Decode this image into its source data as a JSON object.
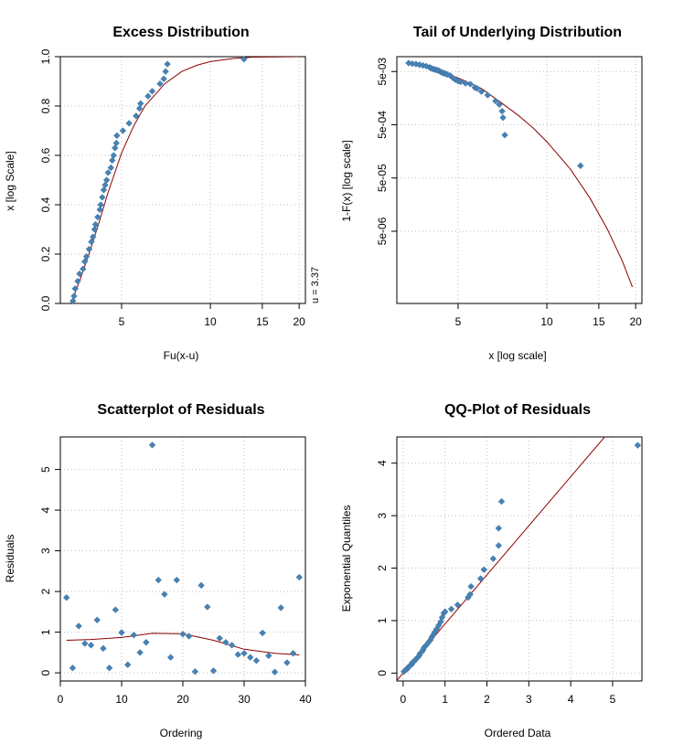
{
  "colors": {
    "points": "#4682B4",
    "curve": "#8B0000",
    "grid": "#BEBEBE"
  },
  "chart_data": [
    {
      "id": "excess",
      "type": "scatter",
      "title": "Excess Distribution",
      "xlabel": "Fu(x-u)",
      "ylabel": "x [log Scale]",
      "xscale": "log",
      "xlim": [
        3.1,
        21
      ],
      "ylim": [
        0,
        1
      ],
      "xticks": [
        5,
        10,
        15,
        20
      ],
      "yticks": [
        0.0,
        0.2,
        0.4,
        0.6,
        0.8,
        1.0
      ],
      "ytick_labels": [
        "0.0",
        "0.2",
        "0.4",
        "0.6",
        "0.8",
        "1.0"
      ],
      "annotation": "u = 3.37",
      "points": [
        [
          3.42,
          0.01
        ],
        [
          3.45,
          0.03
        ],
        [
          3.48,
          0.06
        ],
        [
          3.55,
          0.09
        ],
        [
          3.6,
          0.12
        ],
        [
          3.7,
          0.14
        ],
        [
          3.75,
          0.17
        ],
        [
          3.8,
          0.19
        ],
        [
          3.88,
          0.22
        ],
        [
          3.95,
          0.25
        ],
        [
          4.0,
          0.27
        ],
        [
          4.05,
          0.3
        ],
        [
          4.08,
          0.32
        ],
        [
          4.15,
          0.35
        ],
        [
          4.22,
          0.38
        ],
        [
          4.25,
          0.4
        ],
        [
          4.3,
          0.43
        ],
        [
          4.35,
          0.46
        ],
        [
          4.4,
          0.48
        ],
        [
          4.45,
          0.5
        ],
        [
          4.5,
          0.53
        ],
        [
          4.6,
          0.55
        ],
        [
          4.65,
          0.58
        ],
        [
          4.7,
          0.6
        ],
        [
          4.75,
          0.63
        ],
        [
          4.8,
          0.65
        ],
        [
          4.82,
          0.68
        ],
        [
          5.05,
          0.7
        ],
        [
          5.3,
          0.73
        ],
        [
          5.6,
          0.76
        ],
        [
          5.75,
          0.79
        ],
        [
          5.8,
          0.81
        ],
        [
          6.15,
          0.84
        ],
        [
          6.35,
          0.86
        ],
        [
          6.75,
          0.89
        ],
        [
          6.95,
          0.91
        ],
        [
          7.05,
          0.94
        ],
        [
          7.15,
          0.97
        ],
        [
          13.0,
          0.99
        ]
      ],
      "curve": [
        [
          3.37,
          0.0
        ],
        [
          3.6,
          0.09
        ],
        [
          3.9,
          0.21
        ],
        [
          4.2,
          0.33
        ],
        [
          4.5,
          0.45
        ],
        [
          5.0,
          0.61
        ],
        [
          5.5,
          0.72
        ],
        [
          6.0,
          0.8
        ],
        [
          7.0,
          0.89
        ],
        [
          8.0,
          0.94
        ],
        [
          9.0,
          0.965
        ],
        [
          10.0,
          0.98
        ],
        [
          12.0,
          0.993
        ],
        [
          14.0,
          0.998
        ],
        [
          20.0,
          1.0
        ]
      ]
    },
    {
      "id": "tail",
      "type": "scatter",
      "title": "Tail of Underlying Distribution",
      "xlabel": "x [log scale]",
      "ylabel": "1-F(x) [log scale]",
      "xscale": "log",
      "yscale": "log",
      "xlim": [
        3.1,
        21
      ],
      "ylim": [
        2.2e-07,
        0.0095
      ],
      "xticks": [
        5,
        10,
        15,
        20
      ],
      "yticks": [
        0.005,
        0.0005,
        5e-05,
        5e-06
      ],
      "ytick_labels": [
        "5e-03",
        "5e-04",
        "5e-05",
        "5e-06"
      ],
      "points": [
        [
          3.4,
          0.0072
        ],
        [
          3.5,
          0.007
        ],
        [
          3.6,
          0.0069
        ],
        [
          3.7,
          0.0067
        ],
        [
          3.8,
          0.0065
        ],
        [
          3.9,
          0.0063
        ],
        [
          4.0,
          0.006
        ],
        [
          4.05,
          0.0058
        ],
        [
          4.1,
          0.0056
        ],
        [
          4.15,
          0.0055
        ],
        [
          4.2,
          0.0054
        ],
        [
          4.25,
          0.0053
        ],
        [
          4.3,
          0.0052
        ],
        [
          4.35,
          0.005
        ],
        [
          4.4,
          0.0048
        ],
        [
          4.45,
          0.0047
        ],
        [
          4.5,
          0.0046
        ],
        [
          4.55,
          0.0045
        ],
        [
          4.6,
          0.0044
        ],
        [
          4.7,
          0.0042
        ],
        [
          4.8,
          0.0038
        ],
        [
          4.9,
          0.0035
        ],
        [
          5.0,
          0.0033
        ],
        [
          5.1,
          0.0032
        ],
        [
          5.3,
          0.003
        ],
        [
          5.5,
          0.0029
        ],
        [
          5.7,
          0.0025
        ],
        [
          5.8,
          0.0024
        ],
        [
          6.0,
          0.0021
        ],
        [
          6.3,
          0.0018
        ],
        [
          6.7,
          0.0014
        ],
        [
          6.9,
          0.0012
        ],
        [
          7.05,
          0.0009
        ],
        [
          7.1,
          0.00068
        ],
        [
          7.2,
          0.00032
        ],
        [
          13.0,
          8.5e-05
        ]
      ],
      "curve": [
        [
          3.37,
          0.0074
        ],
        [
          4.0,
          0.0059
        ],
        [
          5.0,
          0.0038
        ],
        [
          6.0,
          0.0024
        ],
        [
          7.0,
          0.0013
        ],
        [
          8.0,
          0.00075
        ],
        [
          9.0,
          0.00043
        ],
        [
          10.0,
          0.00024
        ],
        [
          12.0,
          7.4e-05
        ],
        [
          14.0,
          2.1e-05
        ],
        [
          16.0,
          5.6e-06
        ],
        [
          18.0,
          1.4e-06
        ],
        [
          19.5,
          4.5e-07
        ]
      ]
    },
    {
      "id": "resid",
      "type": "scatter",
      "title": "Scatterplot of Residuals",
      "xlabel": "Ordering",
      "ylabel": "Residuals",
      "xlim": [
        0,
        40
      ],
      "ylim": [
        -0.2,
        5.8
      ],
      "xticks": [
        0,
        10,
        20,
        30,
        40
      ],
      "yticks": [
        0,
        1,
        2,
        3,
        4,
        5
      ],
      "ytick_labels": [
        "0",
        "1",
        "2",
        "3",
        "4",
        "5"
      ],
      "points": [
        [
          1,
          1.85
        ],
        [
          2,
          0.12
        ],
        [
          3,
          1.15
        ],
        [
          4,
          0.72
        ],
        [
          5,
          0.68
        ],
        [
          6,
          1.3
        ],
        [
          7,
          0.6
        ],
        [
          8,
          0.12
        ],
        [
          9,
          1.55
        ],
        [
          10,
          0.99
        ],
        [
          11,
          0.2
        ],
        [
          12,
          0.93
        ],
        [
          13,
          0.5
        ],
        [
          14,
          0.75
        ],
        [
          15,
          5.6
        ],
        [
          16,
          2.28
        ],
        [
          17,
          1.93
        ],
        [
          18,
          0.38
        ],
        [
          19,
          2.28
        ],
        [
          20,
          0.95
        ],
        [
          21,
          0.9
        ],
        [
          22,
          0.03
        ],
        [
          23,
          2.15
        ],
        [
          24,
          1.62
        ],
        [
          25,
          0.05
        ],
        [
          26,
          0.85
        ],
        [
          27,
          0.75
        ],
        [
          28,
          0.68
        ],
        [
          29,
          0.45
        ],
        [
          30,
          0.48
        ],
        [
          31,
          0.38
        ],
        [
          32,
          0.3
        ],
        [
          33,
          0.98
        ],
        [
          34,
          0.42
        ],
        [
          35,
          0.02
        ],
        [
          36,
          1.6
        ],
        [
          37,
          0.25
        ],
        [
          38,
          0.48
        ],
        [
          39,
          2.35
        ]
      ],
      "curve": [
        [
          1,
          0.8
        ],
        [
          5,
          0.82
        ],
        [
          10,
          0.87
        ],
        [
          15,
          0.97
        ],
        [
          20,
          0.96
        ],
        [
          25,
          0.8
        ],
        [
          30,
          0.58
        ],
        [
          35,
          0.48
        ],
        [
          39,
          0.44
        ]
      ]
    },
    {
      "id": "qq",
      "type": "scatter",
      "title": "QQ-Plot of Residuals",
      "xlabel": "Ordered Data",
      "ylabel": "Exponential Quantiles",
      "xlim": [
        -0.15,
        5.7
      ],
      "ylim": [
        -0.15,
        4.5
      ],
      "xticks": [
        0,
        1,
        2,
        3,
        4,
        5
      ],
      "yticks": [
        0,
        1,
        2,
        3,
        4
      ],
      "ytick_labels": [
        "0",
        "1",
        "2",
        "3",
        "4"
      ],
      "points": [
        [
          0.02,
          0.03
        ],
        [
          0.05,
          0.05
        ],
        [
          0.1,
          0.08
        ],
        [
          0.12,
          0.11
        ],
        [
          0.15,
          0.13
        ],
        [
          0.2,
          0.16
        ],
        [
          0.22,
          0.2
        ],
        [
          0.27,
          0.23
        ],
        [
          0.3,
          0.26
        ],
        [
          0.35,
          0.3
        ],
        [
          0.38,
          0.33
        ],
        [
          0.4,
          0.37
        ],
        [
          0.45,
          0.41
        ],
        [
          0.48,
          0.45
        ],
        [
          0.5,
          0.49
        ],
        [
          0.55,
          0.53
        ],
        [
          0.6,
          0.58
        ],
        [
          0.65,
          0.63
        ],
        [
          0.68,
          0.68
        ],
        [
          0.72,
          0.73
        ],
        [
          0.75,
          0.78
        ],
        [
          0.8,
          0.84
        ],
        [
          0.85,
          0.91
        ],
        [
          0.9,
          0.98
        ],
        [
          0.93,
          1.06
        ],
        [
          0.97,
          1.14
        ],
        [
          1.0,
          1.17
        ],
        [
          1.15,
          1.22
        ],
        [
          1.3,
          1.3
        ],
        [
          1.55,
          1.44
        ],
        [
          1.6,
          1.5
        ],
        [
          1.62,
          1.65
        ],
        [
          1.85,
          1.8
        ],
        [
          1.93,
          1.97
        ],
        [
          2.15,
          2.18
        ],
        [
          2.28,
          2.43
        ],
        [
          2.28,
          2.76
        ],
        [
          2.35,
          3.27
        ],
        [
          5.6,
          4.34
        ]
      ],
      "line": [
        [
          -0.15,
          -0.14
        ],
        [
          5.7,
          5.33
        ]
      ]
    }
  ]
}
